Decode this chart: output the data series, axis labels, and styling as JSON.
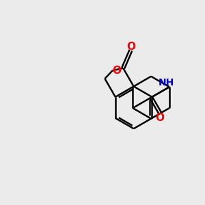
{
  "background_color": "#ebebeb",
  "bond_color": "#000000",
  "bond_width": 1.8,
  "atom_colors": {
    "O": "#ff0000",
    "N": "#0000cd",
    "C": "#000000"
  },
  "font_size": 10,
  "fig_size": [
    3.0,
    3.0
  ],
  "dpi": 100
}
